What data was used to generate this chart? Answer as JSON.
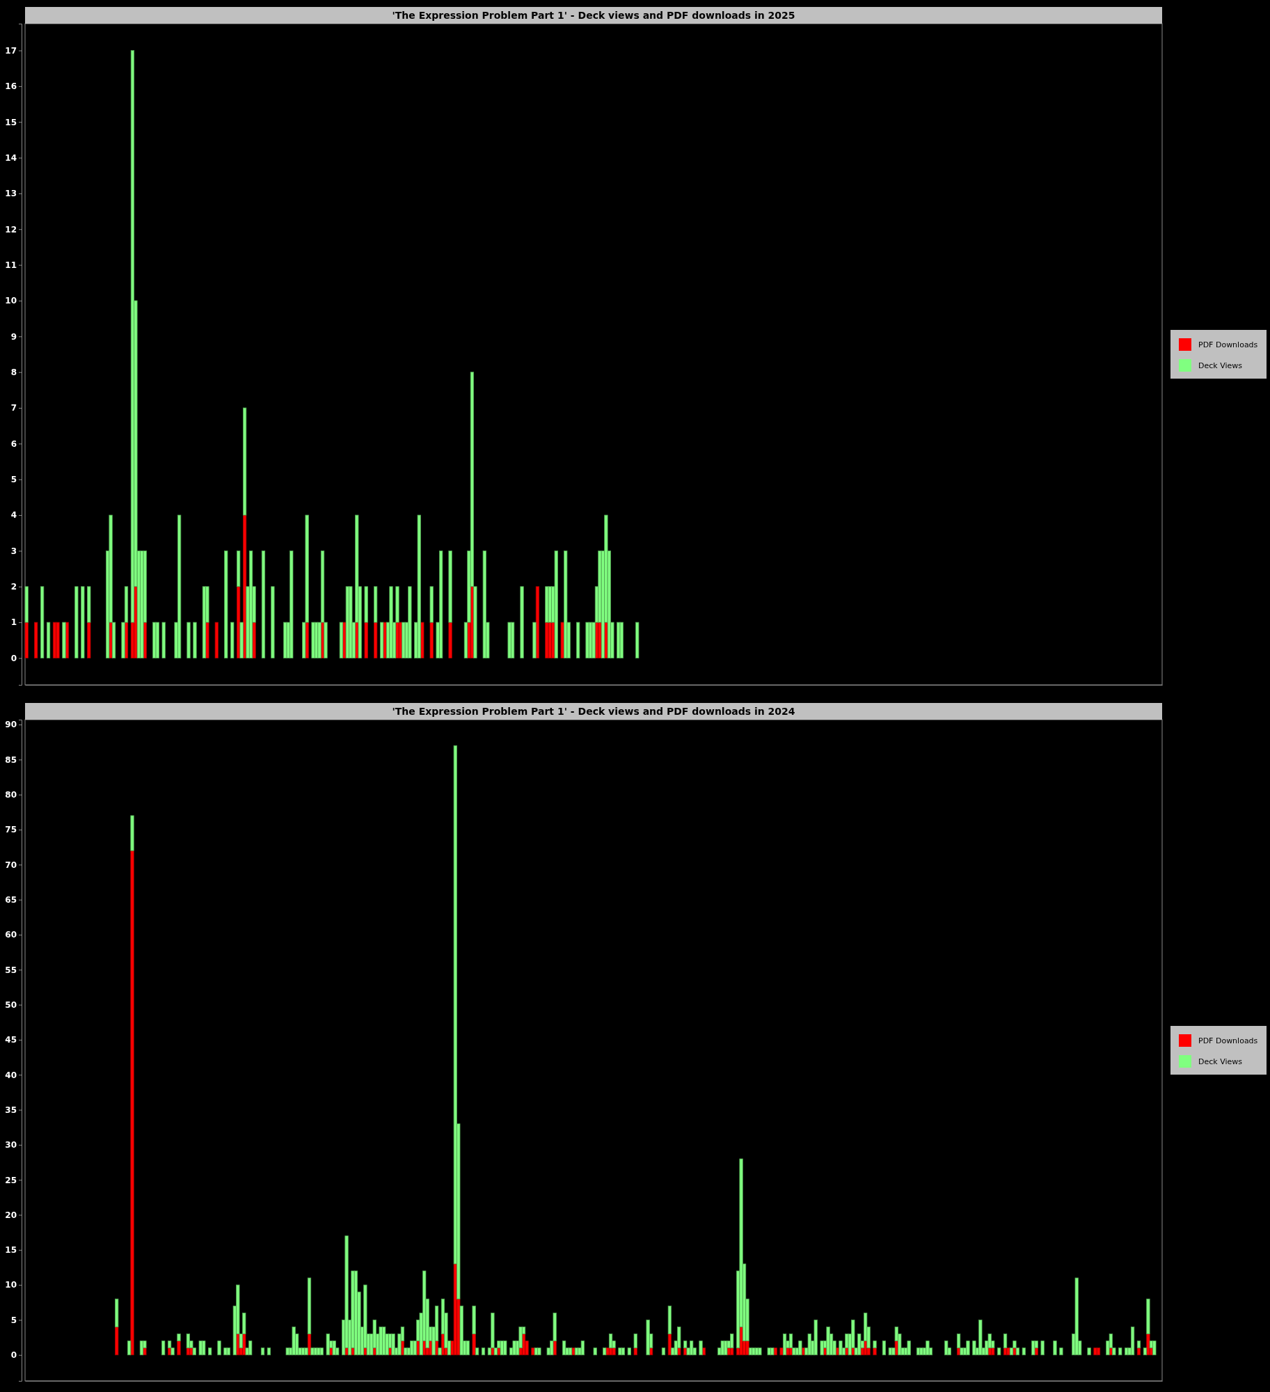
{
  "chart_data": [
    {
      "type": "bar",
      "title": "'The Expression Problem Part 1' - Deck views and PDF downloads in 2025",
      "stacked": true,
      "legend": "right",
      "tick_labels": "y",
      "ylim": [
        -0.75,
        17.75
      ],
      "yticks": [
        0,
        1,
        2,
        3,
        4,
        5,
        6,
        7,
        8,
        9,
        10,
        11,
        12,
        13,
        14,
        15,
        16,
        17
      ],
      "categories": [
        null,
        null,
        null,
        null,
        null,
        null,
        null,
        null,
        null,
        null,
        null,
        null,
        null,
        null,
        null,
        null,
        null,
        null,
        null,
        null,
        null,
        null,
        null,
        null,
        null,
        null,
        null,
        null,
        null,
        null,
        null,
        null,
        null,
        null,
        null,
        null,
        null,
        null,
        null,
        null,
        null,
        null,
        null,
        null,
        null,
        null,
        null,
        null,
        null,
        null,
        null,
        null,
        null,
        null,
        null,
        null,
        null,
        null,
        null,
        null,
        null,
        null,
        null,
        null,
        null,
        null,
        null,
        null,
        null,
        null,
        null,
        null,
        null,
        null,
        null,
        null,
        null,
        null,
        null,
        null,
        null,
        null,
        null,
        null,
        null,
        null,
        null,
        null,
        null,
        null,
        null,
        null,
        null,
        null,
        null,
        null,
        null,
        null,
        null,
        null,
        null,
        null,
        null,
        null,
        null,
        null,
        null,
        null,
        null,
        null,
        null,
        null,
        null,
        null,
        null,
        null,
        null,
        null,
        null,
        null,
        null,
        null,
        null,
        null,
        null,
        null,
        null,
        null,
        null,
        null,
        null,
        null,
        null,
        null,
        null,
        null,
        null,
        null,
        null,
        null,
        null,
        null,
        null,
        null,
        null,
        null,
        null,
        null,
        null,
        null,
        null,
        null,
        null,
        null,
        null,
        null,
        null,
        null,
        null,
        null,
        null,
        null,
        null,
        null,
        null,
        null,
        null,
        null,
        null,
        null,
        null,
        null,
        null,
        null,
        null,
        null,
        null,
        null,
        null,
        null,
        null,
        null,
        null,
        null,
        null,
        null,
        null,
        null,
        null,
        null,
        null,
        null,
        null,
        null,
        null,
        null,
        null,
        null,
        null,
        null,
        null,
        null,
        null,
        null,
        null,
        null,
        null,
        null,
        null,
        null,
        null,
        null,
        null,
        null,
        null,
        null,
        null,
        null,
        null,
        null,
        null,
        null,
        null,
        null,
        null,
        null,
        null,
        null,
        null,
        null,
        null,
        null,
        null,
        null,
        null,
        null,
        null,
        null,
        null,
        null,
        null,
        null,
        null,
        null,
        null,
        null,
        null,
        null,
        null,
        null,
        null,
        null,
        null,
        null,
        null,
        null,
        null,
        null,
        null,
        null,
        null,
        null,
        null,
        null,
        null,
        null,
        null,
        null,
        null,
        null,
        null,
        null,
        null,
        null,
        null,
        null,
        null,
        null,
        null,
        null,
        null,
        null,
        null,
        null,
        null,
        null,
        null,
        null,
        null,
        null,
        null,
        null,
        null,
        null,
        null,
        null,
        null,
        null,
        null,
        null,
        null,
        null,
        null,
        null,
        null,
        null,
        null,
        null,
        null,
        null,
        null,
        null,
        null,
        null,
        null,
        null,
        null,
        null,
        null,
        null,
        null,
        null,
        null,
        null,
        null,
        null,
        null,
        null,
        null,
        null,
        null,
        null,
        null,
        null,
        null,
        null,
        null,
        null,
        null,
        null,
        null,
        null,
        null,
        null,
        null,
        null,
        null,
        null,
        null,
        null,
        null,
        null,
        null,
        null,
        null,
        null,
        null,
        null,
        null,
        null,
        null,
        null,
        null,
        null,
        null
      ],
      "series": [
        {
          "name": "PDF Downloads",
          "color": "#ff0000",
          "values": [
            1,
            0,
            0,
            1,
            0,
            0,
            0,
            0,
            0,
            1,
            1,
            0,
            0,
            1,
            0,
            0,
            0,
            0,
            0,
            0,
            1,
            0,
            0,
            0,
            0,
            0,
            0,
            1,
            0,
            0,
            0,
            0,
            1,
            0,
            1,
            2,
            0,
            0,
            1,
            0,
            0,
            0,
            0,
            0,
            0,
            0,
            0,
            0,
            0,
            0,
            0,
            0,
            0,
            0,
            0,
            0,
            0,
            0,
            1,
            0,
            0,
            1,
            0,
            0,
            0,
            0,
            0,
            0,
            2,
            0,
            4,
            0,
            0,
            1,
            0,
            0,
            0,
            0,
            0,
            0,
            0,
            0,
            0,
            0,
            0,
            0,
            0,
            0,
            0,
            0,
            1,
            0,
            0,
            0,
            0,
            1,
            0,
            0,
            0,
            0,
            0,
            0,
            1,
            0,
            0,
            0,
            1,
            0,
            0,
            1,
            0,
            0,
            1,
            0,
            0,
            1,
            0,
            0,
            0,
            1,
            1,
            0,
            0,
            0,
            0,
            0,
            0,
            1,
            0,
            0,
            1,
            0,
            0,
            0,
            0,
            0,
            1,
            0,
            0,
            0,
            0,
            0,
            1,
            2,
            0,
            0,
            0,
            0,
            0,
            0,
            0,
            0,
            0,
            0,
            0,
            0,
            0,
            0,
            0,
            0,
            0,
            0,
            0,
            0,
            2,
            0,
            0,
            1,
            1,
            1,
            0,
            0,
            1,
            0,
            0,
            0,
            0,
            0,
            0,
            0,
            0,
            0,
            0,
            1,
            1,
            0,
            1,
            0,
            0,
            0,
            0,
            0,
            0,
            0,
            0,
            0,
            0,
            0,
            0,
            0,
            0,
            0,
            0,
            0,
            0,
            0,
            0,
            0,
            0,
            0,
            0,
            0,
            0,
            0,
            0,
            0,
            0,
            0,
            0,
            0,
            0,
            0,
            0,
            0,
            0,
            0,
            0,
            0,
            0,
            0,
            0,
            0,
            0,
            0,
            0,
            0,
            0,
            0,
            0,
            0,
            0,
            0,
            0,
            0,
            0,
            0,
            0,
            0,
            0,
            0,
            0,
            0,
            0,
            0,
            0,
            0,
            0,
            0,
            0,
            0,
            0,
            0,
            0,
            0,
            0,
            0,
            0,
            0,
            0,
            0,
            0,
            0,
            0,
            0,
            0,
            0,
            0,
            0,
            0,
            0,
            0,
            0,
            0,
            0,
            0,
            0,
            0,
            0,
            0,
            0,
            0,
            0,
            0,
            0,
            0,
            0,
            0,
            0,
            0,
            0,
            0,
            0,
            0,
            0,
            0,
            0,
            0,
            0,
            0,
            0,
            0,
            0,
            0,
            0,
            0,
            0,
            0,
            0,
            0,
            0,
            0,
            0,
            0,
            0,
            0,
            0,
            0,
            0,
            0,
            0,
            0,
            0,
            0,
            0,
            0,
            0,
            0,
            0,
            0,
            0,
            0,
            0,
            0,
            0,
            0,
            0,
            0,
            0,
            0,
            0,
            0,
            0,
            0,
            0,
            0,
            0,
            0,
            0,
            0,
            0,
            0,
            0,
            0,
            0,
            0
          ]
        },
        {
          "name": "Deck Views",
          "color": "#80ff80",
          "values": [
            1,
            0,
            0,
            0,
            0,
            2,
            0,
            1,
            0,
            0,
            0,
            0,
            1,
            0,
            0,
            0,
            2,
            0,
            2,
            0,
            1,
            0,
            0,
            0,
            0,
            0,
            3,
            3,
            1,
            0,
            0,
            1,
            1,
            0,
            16,
            8,
            3,
            3,
            2,
            0,
            0,
            1,
            1,
            0,
            1,
            0,
            0,
            0,
            1,
            4,
            0,
            0,
            1,
            0,
            1,
            0,
            0,
            2,
            1,
            0,
            0,
            0,
            0,
            0,
            3,
            0,
            1,
            0,
            1,
            1,
            3,
            2,
            3,
            1,
            0,
            0,
            3,
            0,
            0,
            2,
            0,
            0,
            0,
            1,
            1,
            3,
            0,
            0,
            0,
            1,
            3,
            0,
            1,
            1,
            1,
            2,
            1,
            0,
            0,
            0,
            0,
            1,
            0,
            2,
            2,
            1,
            3,
            2,
            0,
            1,
            0,
            0,
            1,
            0,
            1,
            0,
            1,
            2,
            1,
            1,
            0,
            1,
            1,
            2,
            0,
            1,
            4,
            0,
            0,
            0,
            1,
            0,
            1,
            3,
            0,
            0,
            2,
            0,
            0,
            0,
            0,
            1,
            2,
            6,
            2,
            0,
            0,
            3,
            1,
            0,
            0,
            0,
            0,
            0,
            0,
            1,
            1,
            0,
            0,
            2,
            0,
            0,
            0,
            1,
            0,
            0,
            0,
            1,
            1,
            1,
            3,
            0,
            0,
            3,
            1,
            0,
            0,
            1,
            0,
            0,
            1,
            1,
            1,
            1,
            2,
            3,
            3,
            3,
            1,
            0,
            1,
            1,
            0,
            0,
            0,
            0,
            1,
            0,
            0,
            0,
            0,
            0,
            0,
            0,
            0,
            0,
            0,
            0,
            0,
            0,
            0,
            0,
            0,
            0,
            0,
            0,
            0,
            0,
            0,
            0,
            0,
            0,
            0,
            0,
            0,
            0,
            0,
            0,
            0,
            0,
            0,
            0,
            0,
            0,
            0,
            0,
            0,
            0,
            0,
            0,
            0,
            0,
            0,
            0,
            0,
            0,
            0,
            0,
            0,
            0,
            0,
            0,
            0,
            0,
            0,
            0,
            0,
            0,
            0,
            0,
            0,
            0,
            0,
            0,
            0,
            0,
            0,
            0,
            0,
            0,
            0,
            0,
            0,
            0,
            0,
            0,
            0,
            0,
            0,
            0,
            0,
            0,
            0,
            0,
            0,
            0,
            0,
            0,
            0,
            0,
            0,
            0,
            0,
            0,
            0,
            0,
            0,
            0,
            0,
            0,
            0,
            0,
            0,
            0,
            0,
            0,
            0,
            0,
            0,
            0,
            0,
            0,
            0,
            0,
            0,
            0,
            0,
            0,
            0,
            0,
            0,
            0,
            0,
            0,
            0,
            0,
            0,
            0,
            0,
            0,
            0,
            0,
            0,
            0,
            0,
            0,
            0,
            0,
            0,
            0,
            0,
            0,
            0,
            0,
            0,
            0,
            0,
            0,
            0,
            0,
            0,
            0,
            0,
            0,
            0,
            0,
            0,
            0,
            0,
            0,
            0,
            0,
            0,
            0,
            0
          ]
        }
      ]
    },
    {
      "type": "bar",
      "title": "'The Expression Problem Part 1' - Deck views and PDF downloads in 2024",
      "stacked": true,
      "legend": "right",
      "tick_labels": "y",
      "ylim": [
        -3.7,
        90.7
      ],
      "yticks": [
        0,
        5,
        10,
        15,
        20,
        25,
        30,
        35,
        40,
        45,
        50,
        55,
        60,
        65,
        70,
        75,
        80,
        85,
        90
      ],
      "categories": [
        null,
        null,
        null,
        null,
        null,
        null,
        null,
        null,
        null,
        null,
        null,
        null,
        null,
        null,
        null,
        null,
        null,
        null,
        null,
        null,
        null,
        null,
        null,
        null,
        null,
        null,
        null,
        null,
        null,
        null,
        null,
        null,
        null,
        null,
        null,
        null,
        null,
        null,
        null,
        null,
        null,
        null,
        null,
        null,
        null,
        null,
        null,
        null,
        null,
        null,
        null,
        null,
        null,
        null,
        null,
        null,
        null,
        null,
        null,
        null,
        null,
        null,
        null,
        null,
        null,
        null,
        null,
        null,
        null,
        null,
        null,
        null,
        null,
        null,
        null,
        null,
        null,
        null,
        null,
        null,
        null,
        null,
        null,
        null,
        null,
        null,
        null,
        null,
        null,
        null,
        null,
        null,
        null,
        null,
        null,
        null,
        null,
        null,
        null,
        null,
        null,
        null,
        null,
        null,
        null,
        null,
        null,
        null,
        null,
        null,
        null,
        null,
        null,
        null,
        null,
        null,
        null,
        null,
        null,
        null,
        null,
        null,
        null,
        null,
        null,
        null,
        null,
        null,
        null,
        null,
        null,
        null,
        null,
        null,
        null,
        null,
        null,
        null,
        null,
        null,
        null,
        null,
        null,
        null,
        null,
        null,
        null,
        null,
        null,
        null,
        null,
        null,
        null,
        null,
        null,
        null,
        null,
        null,
        null,
        null,
        null,
        null,
        null,
        null,
        null,
        null,
        null,
        null,
        null,
        null,
        null,
        null,
        null,
        null,
        null,
        null,
        null,
        null,
        null,
        null,
        null,
        null,
        null,
        null,
        null,
        null,
        null,
        null,
        null,
        null,
        null,
        null,
        null,
        null,
        null,
        null,
        null,
        null,
        null,
        null,
        null,
        null,
        null,
        null,
        null,
        null,
        null,
        null,
        null,
        null,
        null,
        null,
        null,
        null,
        null,
        null,
        null,
        null,
        null,
        null,
        null,
        null,
        null,
        null,
        null,
        null,
        null,
        null,
        null,
        null,
        null,
        null,
        null,
        null,
        null,
        null,
        null,
        null,
        null,
        null,
        null,
        null,
        null,
        null,
        null,
        null,
        null,
        null,
        null,
        null,
        null,
        null,
        null,
        null,
        null,
        null,
        null,
        null,
        null,
        null,
        null,
        null,
        null,
        null,
        null,
        null,
        null,
        null,
        null,
        null,
        null,
        null,
        null,
        null,
        null,
        null,
        null,
        null,
        null,
        null,
        null,
        null,
        null,
        null,
        null,
        null,
        null,
        null,
        null,
        null,
        null,
        null,
        null,
        null,
        null,
        null,
        null,
        null,
        null,
        null,
        null,
        null,
        null,
        null,
        null,
        null,
        null,
        null,
        null,
        null,
        null,
        null,
        null,
        null,
        null,
        null,
        null,
        null,
        null,
        null,
        null,
        null,
        null,
        null,
        null,
        null,
        null,
        null,
        null,
        null,
        null,
        null,
        null,
        null,
        null,
        null,
        null,
        null,
        null,
        null,
        null,
        null,
        null,
        null,
        null,
        null,
        null,
        null,
        null,
        null,
        null,
        null,
        null,
        null,
        null,
        null,
        null,
        null,
        null,
        null,
        null,
        null,
        null,
        null,
        null,
        null
      ],
      "series": [
        {
          "name": "PDF Downloads",
          "color": "#ff0000",
          "values": [
            0,
            0,
            0,
            0,
            0,
            0,
            0,
            0,
            0,
            0,
            0,
            0,
            0,
            0,
            0,
            0,
            0,
            0,
            0,
            0,
            0,
            0,
            0,
            0,
            0,
            0,
            0,
            0,
            0,
            4,
            0,
            0,
            0,
            0,
            72,
            0,
            0,
            0,
            1,
            0,
            0,
            0,
            0,
            0,
            0,
            0,
            1,
            0,
            0,
            2,
            0,
            0,
            1,
            1,
            0,
            0,
            0,
            0,
            0,
            0,
            0,
            0,
            0,
            0,
            0,
            0,
            0,
            0,
            3,
            1,
            3,
            0,
            0,
            0,
            0,
            0,
            0,
            0,
            0,
            0,
            0,
            0,
            0,
            0,
            0,
            0,
            0,
            0,
            0,
            0,
            0,
            3,
            0,
            0,
            0,
            0,
            0,
            0,
            1,
            0,
            0,
            0,
            0,
            1,
            0,
            1,
            0,
            0,
            0,
            1,
            0,
            0,
            1,
            0,
            0,
            0,
            0,
            1,
            0,
            0,
            0,
            2,
            0,
            0,
            0,
            0,
            2,
            0,
            2,
            1,
            2,
            0,
            2,
            0,
            3,
            1,
            0,
            2,
            13,
            8,
            0,
            0,
            0,
            0,
            3,
            0,
            0,
            0,
            0,
            0,
            1,
            0,
            1,
            0,
            0,
            0,
            0,
            0,
            0,
            1,
            3,
            2,
            0,
            1,
            0,
            0,
            0,
            0,
            0,
            0,
            2,
            0,
            0,
            0,
            0,
            0,
            1,
            0,
            0,
            0,
            0,
            0,
            0,
            0,
            0,
            0,
            0,
            1,
            1,
            1,
            0,
            0,
            0,
            0,
            0,
            0,
            1,
            0,
            0,
            0,
            0,
            1,
            0,
            0,
            0,
            0,
            0,
            3,
            0,
            0,
            1,
            0,
            1,
            0,
            0,
            0,
            0,
            0,
            1,
            0,
            0,
            0,
            0,
            0,
            0,
            0,
            1,
            1,
            0,
            1,
            4,
            2,
            2,
            0,
            0,
            0,
            0,
            0,
            0,
            0,
            0,
            1,
            0,
            1,
            0,
            1,
            1,
            0,
            0,
            0,
            1,
            0,
            0,
            0,
            0,
            0,
            0,
            1,
            0,
            0,
            0,
            1,
            0,
            0,
            1,
            0,
            1,
            0,
            0,
            1,
            2,
            1,
            0,
            1,
            0,
            0,
            0,
            0,
            0,
            0,
            2,
            0,
            0,
            0,
            0,
            0,
            0,
            0,
            0,
            0,
            0,
            0,
            0,
            0,
            0,
            0,
            0,
            0,
            0,
            0,
            1,
            0,
            0,
            0,
            0,
            0,
            0,
            0,
            0,
            0,
            1,
            1,
            0,
            0,
            0,
            1,
            1,
            0,
            1,
            0,
            0,
            0,
            0,
            0,
            0,
            1,
            0,
            0,
            0,
            0,
            0,
            0,
            0,
            0,
            0,
            0,
            0,
            0,
            0,
            0,
            0,
            0,
            0,
            0,
            1,
            1,
            0,
            0,
            0,
            1,
            0,
            0,
            0,
            0,
            0,
            0,
            0,
            0,
            1,
            0,
            0,
            3,
            1,
            0,
            0,
            0
          ]
        },
        {
          "name": "Deck Views",
          "color": "#80ff80",
          "values": [
            0,
            0,
            0,
            0,
            0,
            0,
            0,
            0,
            0,
            0,
            0,
            0,
            0,
            0,
            0,
            0,
            0,
            0,
            0,
            0,
            0,
            0,
            0,
            0,
            0,
            0,
            0,
            0,
            0,
            4,
            0,
            0,
            0,
            2,
            5,
            0,
            0,
            2,
            1,
            0,
            0,
            0,
            0,
            0,
            2,
            0,
            1,
            1,
            0,
            1,
            0,
            0,
            2,
            1,
            1,
            0,
            2,
            2,
            0,
            1,
            0,
            0,
            2,
            0,
            1,
            1,
            0,
            7,
            7,
            2,
            3,
            1,
            2,
            0,
            0,
            0,
            1,
            0,
            1,
            0,
            0,
            0,
            0,
            0,
            1,
            1,
            4,
            3,
            1,
            1,
            1,
            8,
            1,
            1,
            1,
            1,
            0,
            3,
            1,
            2,
            1,
            0,
            5,
            16,
            5,
            11,
            12,
            9,
            4,
            9,
            3,
            3,
            4,
            3,
            4,
            4,
            3,
            2,
            3,
            1,
            3,
            2,
            1,
            1,
            2,
            2,
            3,
            6,
            10,
            7,
            2,
            4,
            5,
            1,
            5,
            5,
            2,
            0,
            74,
            25,
            7,
            2,
            2,
            0,
            4,
            1,
            0,
            1,
            0,
            1,
            5,
            1,
            1,
            2,
            2,
            0,
            1,
            2,
            2,
            3,
            1,
            0,
            0,
            0,
            1,
            1,
            0,
            0,
            1,
            2,
            4,
            0,
            0,
            2,
            1,
            1,
            0,
            1,
            1,
            2,
            0,
            0,
            0,
            1,
            0,
            0,
            1,
            0,
            2,
            1,
            0,
            1,
            1,
            0,
            1,
            0,
            2,
            0,
            0,
            0,
            5,
            2,
            0,
            0,
            0,
            1,
            0,
            4,
            1,
            2,
            3,
            0,
            1,
            1,
            2,
            1,
            0,
            2,
            0,
            0,
            0,
            0,
            0,
            1,
            2,
            2,
            1,
            2,
            0,
            11,
            24,
            11,
            6,
            1,
            1,
            1,
            1,
            0,
            0,
            1,
            1,
            0,
            0,
            0,
            3,
            1,
            2,
            1,
            1,
            2,
            0,
            1,
            3,
            2,
            5,
            0,
            2,
            1,
            4,
            3,
            2,
            0,
            2,
            1,
            2,
            3,
            4,
            1,
            3,
            1,
            4,
            3,
            0,
            1,
            0,
            0,
            2,
            0,
            1,
            1,
            2,
            3,
            1,
            1,
            2,
            0,
            0,
            1,
            1,
            1,
            2,
            1,
            0,
            0,
            0,
            0,
            2,
            1,
            0,
            0,
            2,
            1,
            1,
            2,
            0,
            2,
            1,
            5,
            1,
            2,
            2,
            1,
            0,
            1,
            0,
            2,
            0,
            1,
            1,
            1,
            0,
            1,
            0,
            0,
            2,
            1,
            0,
            2,
            0,
            0,
            0,
            2,
            0,
            1,
            0,
            0,
            0,
            3,
            11,
            2,
            0,
            0,
            1,
            0,
            0,
            0,
            0,
            0,
            2,
            2,
            1,
            0,
            1,
            0,
            1,
            1,
            4,
            0,
            1,
            0,
            1,
            5,
            1,
            2,
            0,
            0
          ]
        }
      ]
    }
  ]
}
